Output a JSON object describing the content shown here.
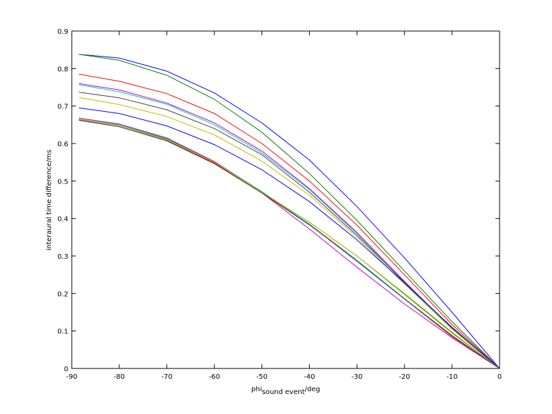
{
  "chart_data": {
    "type": "line",
    "title": "",
    "xlabel": {
      "main": "phi",
      "sub": "sound event",
      "unit": "/deg"
    },
    "ylabel": "interaural time difference/ms",
    "xlim": [
      -90,
      0
    ],
    "ylim": [
      0,
      0.9
    ],
    "xticks": [
      -90,
      -80,
      -70,
      -60,
      -50,
      -40,
      -30,
      -20,
      -10,
      0
    ],
    "yticks": [
      0,
      0.1,
      0.2,
      0.3,
      0.4,
      0.5,
      0.6,
      0.7,
      0.8,
      0.9
    ],
    "xtick_labels": [
      "-90",
      "-80",
      "-70",
      "-60",
      "-50",
      "-40",
      "-30",
      "-20",
      "-10",
      "0"
    ],
    "ytick_labels": [
      "0",
      "0.1",
      "0.2",
      "0.3",
      "0.4",
      "0.5",
      "0.6",
      "0.7",
      "0.8",
      "0.9"
    ],
    "grid": false,
    "legend": "none",
    "series": [
      {
        "color": "#0000ff",
        "x": [
          -88.5,
          -80,
          -70,
          -60,
          -50,
          -40,
          -30,
          -20,
          -10,
          0
        ],
        "values": [
          0.838,
          0.828,
          0.793,
          0.735,
          0.655,
          0.556,
          0.432,
          0.295,
          0.15,
          0.0
        ]
      },
      {
        "color": "#008000",
        "x": [
          -88.5,
          -80,
          -70,
          -60,
          -50,
          -40,
          -30,
          -20,
          -10,
          0
        ],
        "values": [
          0.838,
          0.822,
          0.782,
          0.718,
          0.63,
          0.52,
          0.395,
          0.26,
          0.125,
          0.0
        ]
      },
      {
        "color": "#ff0000",
        "x": [
          -88.5,
          -80,
          -70,
          -60,
          -50,
          -40,
          -30,
          -20,
          -10,
          0
        ],
        "values": [
          0.785,
          0.766,
          0.733,
          0.68,
          0.6,
          0.5,
          0.382,
          0.25,
          0.117,
          0.0
        ]
      },
      {
        "color": "#00bfbf",
        "x": [
          -88.5,
          -80,
          -70,
          -60,
          -50,
          -40,
          -30,
          -20,
          -10,
          0
        ],
        "values": [
          0.757,
          0.738,
          0.705,
          0.65,
          0.575,
          0.477,
          0.36,
          0.228,
          0.105,
          0.0
        ]
      },
      {
        "color": "#bf00bf",
        "x": [
          -88.5,
          -80,
          -70,
          -60,
          -50,
          -40,
          -30,
          -20,
          -10,
          0
        ],
        "values": [
          0.76,
          0.743,
          0.708,
          0.655,
          0.58,
          0.48,
          0.363,
          0.232,
          0.107,
          0.0
        ]
      },
      {
        "color": "#bfbf00",
        "x": [
          -88.5,
          -80,
          -70,
          -60,
          -50,
          -40,
          -30,
          -20,
          -10,
          0
        ],
        "values": [
          0.723,
          0.704,
          0.672,
          0.623,
          0.553,
          0.462,
          0.35,
          0.225,
          0.105,
          0.0
        ]
      },
      {
        "color": "#404040",
        "x": [
          -88.5,
          -80,
          -70,
          -60,
          -50,
          -40,
          -30,
          -20,
          -10,
          0
        ],
        "values": [
          0.737,
          0.722,
          0.69,
          0.64,
          0.57,
          0.47,
          0.355,
          0.23,
          0.108,
          0.0
        ]
      },
      {
        "color": "#0000ff",
        "x": [
          -88.5,
          -80,
          -70,
          -60,
          -50,
          -40,
          -30,
          -20,
          -10,
          0
        ],
        "values": [
          0.695,
          0.68,
          0.647,
          0.597,
          0.53,
          0.445,
          0.343,
          0.228,
          0.11,
          0.0
        ]
      },
      {
        "color": "#008000",
        "x": [
          -88.5,
          -80,
          -70,
          -60,
          -50,
          -40,
          -30,
          -20,
          -10,
          0
        ],
        "values": [
          0.665,
          0.648,
          0.612,
          0.55,
          0.47,
          0.39,
          0.3,
          0.198,
          0.095,
          0.0
        ]
      },
      {
        "color": "#ff0000",
        "x": [
          -88.5,
          -80,
          -70,
          -60,
          -50,
          -40,
          -30,
          -20,
          -10,
          0
        ],
        "values": [
          0.663,
          0.645,
          0.608,
          0.548,
          0.47,
          0.385,
          0.288,
          0.185,
          0.085,
          0.0
        ]
      },
      {
        "color": "#00bfbf",
        "x": [
          -88.5,
          -80,
          -70,
          -60,
          -50,
          -40,
          -30,
          -20,
          -10,
          0
        ],
        "values": [
          0.668,
          0.65,
          0.613,
          0.552,
          0.472,
          0.385,
          0.285,
          0.185,
          0.088,
          0.0
        ]
      },
      {
        "color": "#bf00bf",
        "x": [
          -88.5,
          -80,
          -70,
          -60,
          -50,
          -40,
          -30,
          -20,
          -10,
          0
        ],
        "values": [
          0.668,
          0.652,
          0.615,
          0.552,
          0.468,
          0.372,
          0.27,
          0.172,
          0.082,
          0.0
        ]
      },
      {
        "color": "#bfbf00",
        "x": [
          -88.5,
          -80,
          -70,
          -60,
          -50,
          -40,
          -30,
          -20,
          -10,
          0
        ],
        "values": [
          0.665,
          0.648,
          0.61,
          0.55,
          0.47,
          0.39,
          0.3,
          0.2,
          0.097,
          0.0
        ]
      },
      {
        "color": "#404040",
        "x": [
          -88.5,
          -80,
          -70,
          -60,
          -50,
          -40,
          -30,
          -20,
          -10,
          0
        ],
        "values": [
          0.662,
          0.645,
          0.607,
          0.546,
          0.468,
          0.383,
          0.288,
          0.186,
          0.088,
          0.0
        ]
      }
    ]
  }
}
